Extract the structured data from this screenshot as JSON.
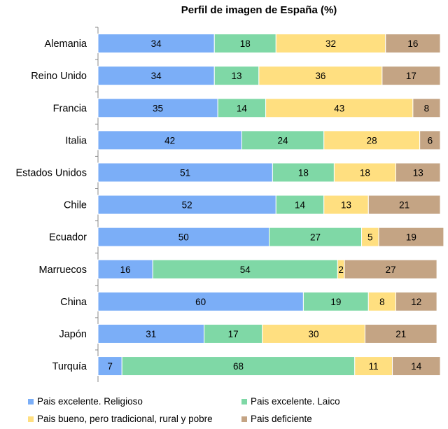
{
  "chart_data": {
    "type": "bar",
    "orientation": "horizontal",
    "stacked": true,
    "title": "Perfil de imagen de España (%)",
    "categories": [
      "Alemania",
      "Reino Unido",
      "Francia",
      "Italia",
      "Estados Unidos",
      "Chile",
      "Ecuador",
      "Marruecos",
      "China",
      "Japón",
      "Turquía"
    ],
    "series": [
      {
        "name": "Pais excelente. Religioso",
        "color": "#7BAEF7",
        "values": [
          34,
          34,
          35,
          42,
          51,
          52,
          50,
          16,
          60,
          31,
          7
        ]
      },
      {
        "name": "Pais excelente. Laico",
        "color": "#7FD8A6",
        "values": [
          18,
          13,
          14,
          24,
          18,
          14,
          27,
          54,
          19,
          17,
          68
        ]
      },
      {
        "name": "Pais bueno, pero tradicional, rural y pobre",
        "color": "#FFDF80",
        "values": [
          32,
          36,
          43,
          28,
          18,
          13,
          5,
          2,
          8,
          30,
          11
        ]
      },
      {
        "name": "Pais deficiente",
        "color": "#C4A484",
        "values": [
          16,
          17,
          8,
          6,
          13,
          21,
          19,
          27,
          12,
          21,
          14
        ]
      }
    ],
    "xlim": [
      0,
      100
    ],
    "legend_position": "bottom",
    "grid": false
  }
}
